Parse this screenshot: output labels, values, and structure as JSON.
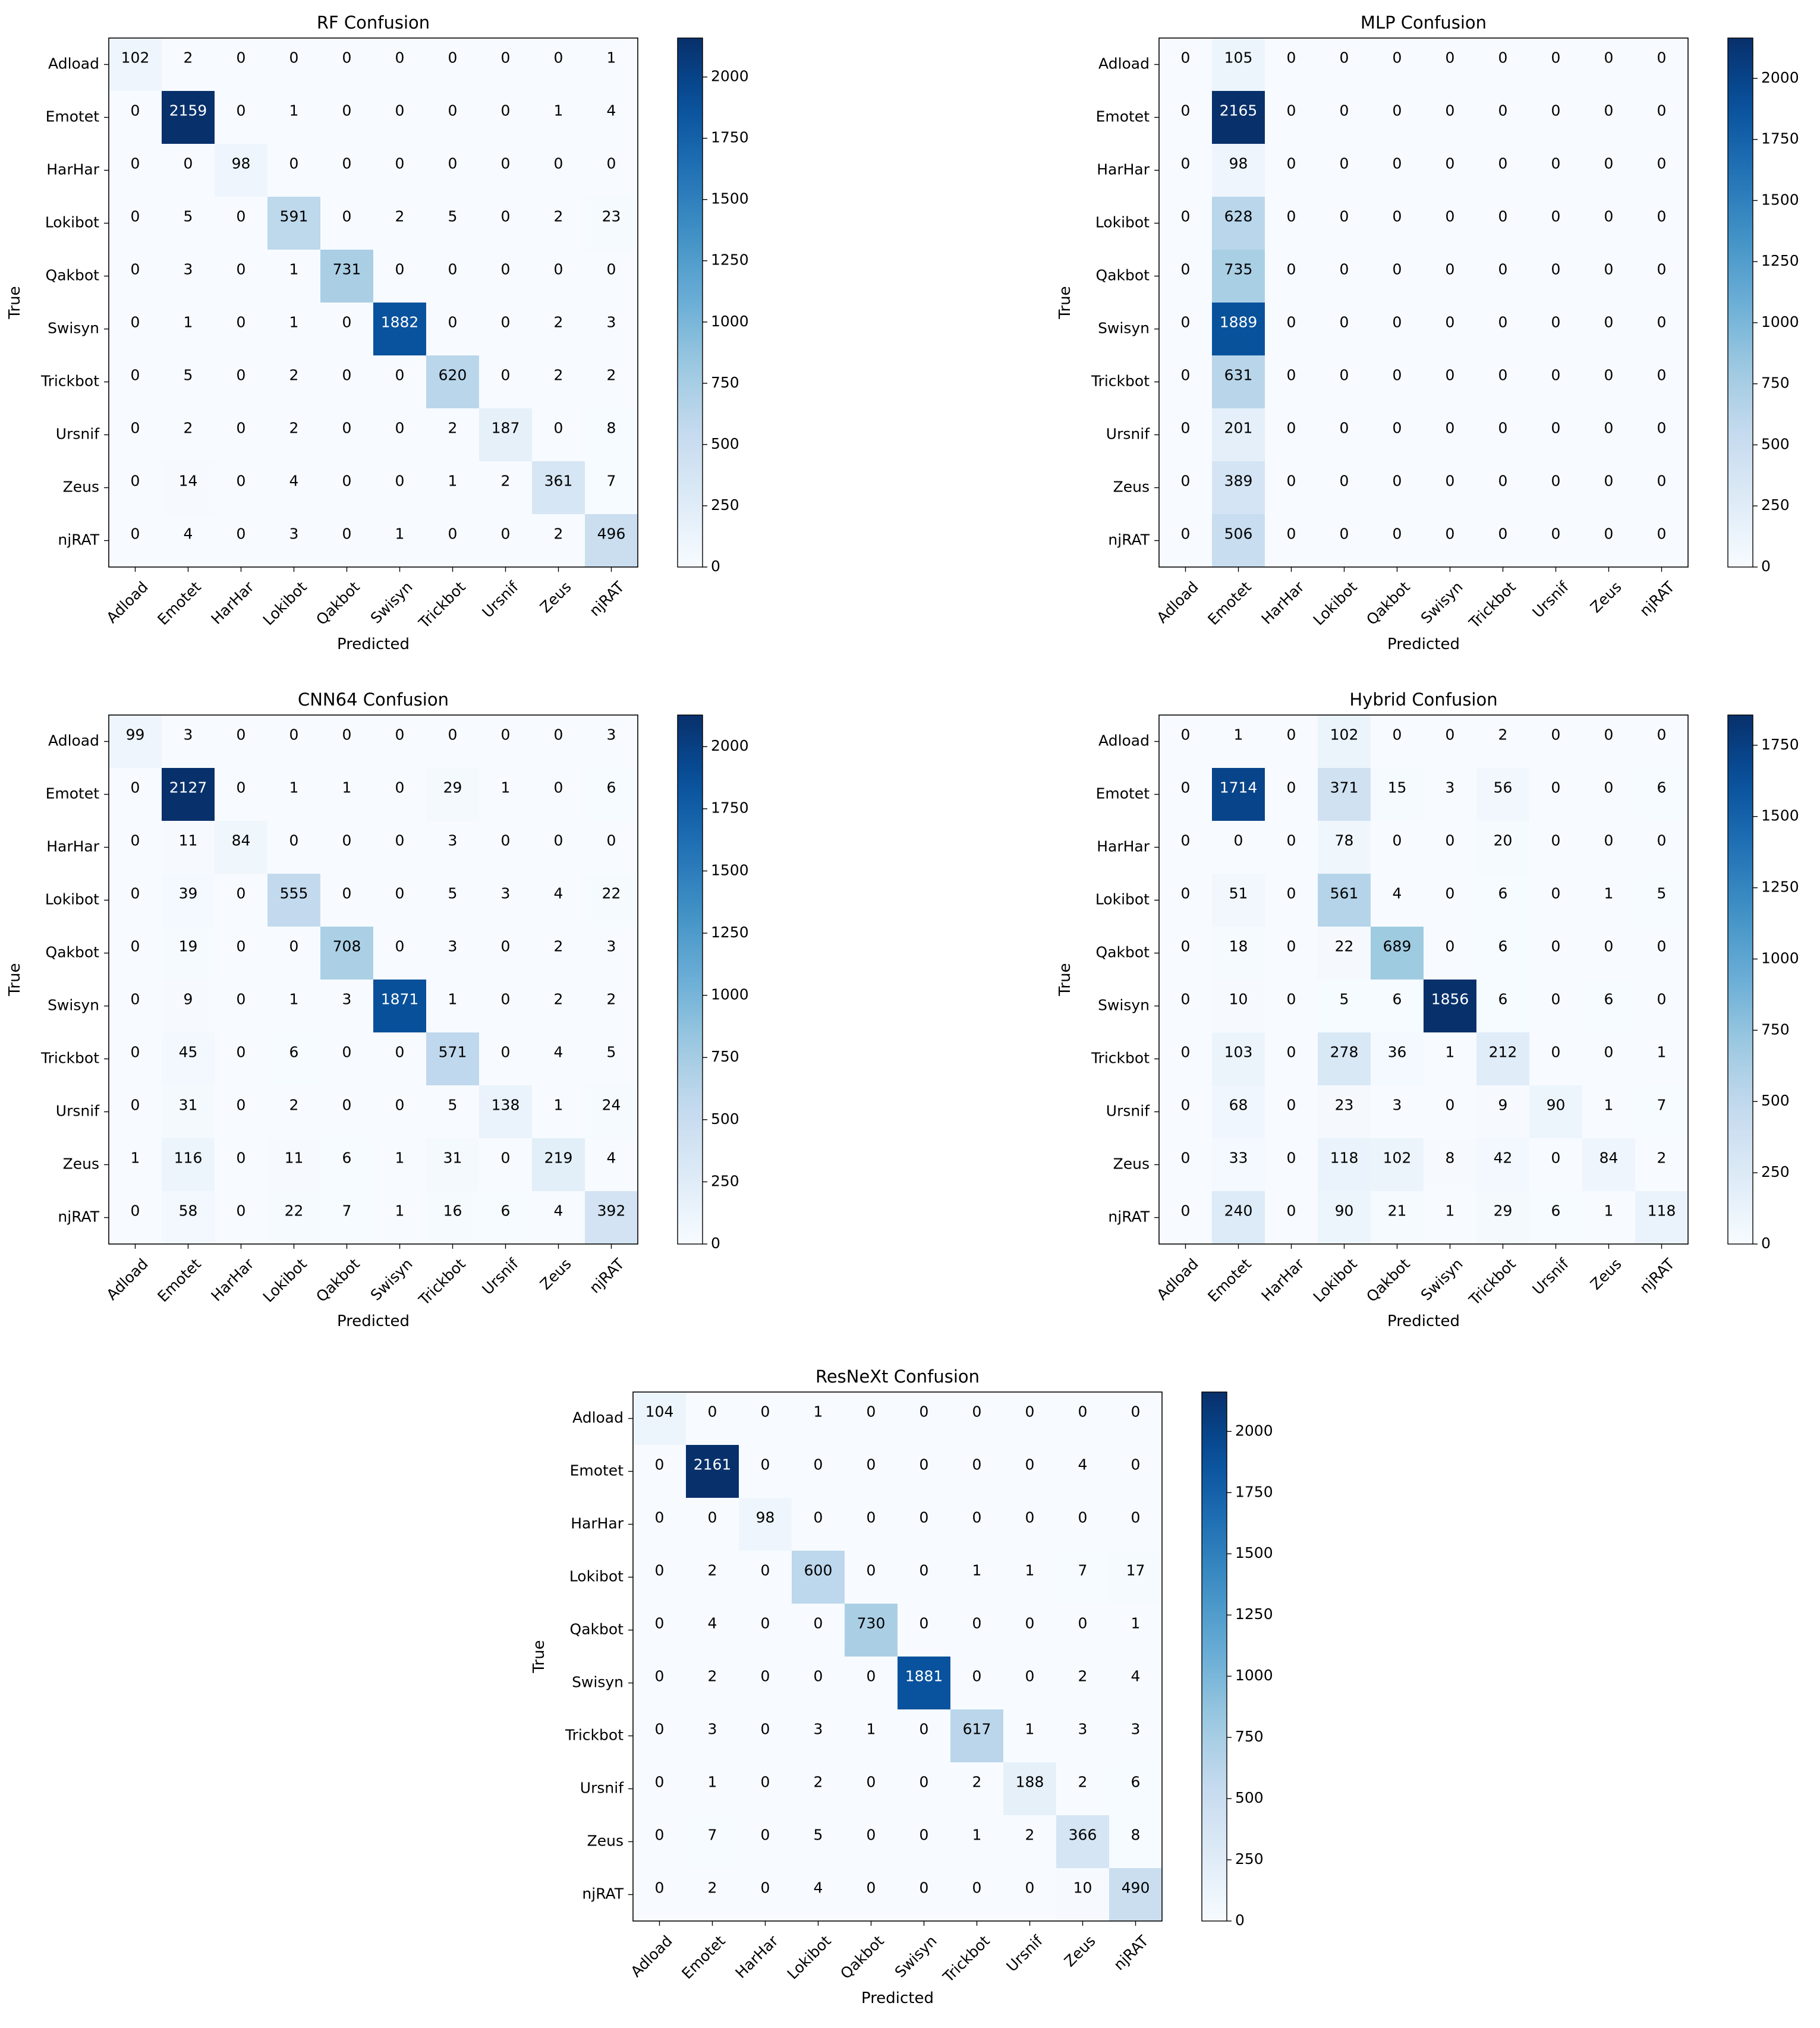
{
  "chart_data": [
    {
      "type": "heatmap",
      "title": "RF Confusion",
      "xlabel": "Predicted",
      "ylabel": "True",
      "labels": [
        "Adload",
        "Emotet",
        "HarHar",
        "Lokibot",
        "Qakbot",
        "Swisyn",
        "Trickbot",
        "Ursnif",
        "Zeus",
        "njRAT"
      ],
      "matrix": [
        [
          102,
          2,
          0,
          0,
          0,
          0,
          0,
          0,
          0,
          1
        ],
        [
          0,
          2159,
          0,
          1,
          0,
          0,
          0,
          0,
          1,
          4
        ],
        [
          0,
          0,
          98,
          0,
          0,
          0,
          0,
          0,
          0,
          0
        ],
        [
          0,
          5,
          0,
          591,
          0,
          2,
          5,
          0,
          2,
          23
        ],
        [
          0,
          3,
          0,
          1,
          731,
          0,
          0,
          0,
          0,
          0
        ],
        [
          0,
          1,
          0,
          1,
          0,
          1882,
          0,
          0,
          2,
          3
        ],
        [
          0,
          5,
          0,
          2,
          0,
          0,
          620,
          0,
          2,
          2
        ],
        [
          0,
          2,
          0,
          2,
          0,
          0,
          2,
          187,
          0,
          8
        ],
        [
          0,
          14,
          0,
          4,
          0,
          0,
          1,
          2,
          361,
          7
        ],
        [
          0,
          4,
          0,
          3,
          0,
          1,
          0,
          0,
          2,
          496
        ]
      ],
      "colorbar_ticks": [
        0,
        250,
        500,
        750,
        1000,
        1250,
        1500,
        1750,
        2000
      ],
      "colormap": "Blues"
    },
    {
      "type": "heatmap",
      "title": "MLP Confusion",
      "xlabel": "Predicted",
      "ylabel": "True",
      "labels": [
        "Adload",
        "Emotet",
        "HarHar",
        "Lokibot",
        "Qakbot",
        "Swisyn",
        "Trickbot",
        "Ursnif",
        "Zeus",
        "njRAT"
      ],
      "matrix": [
        [
          0,
          105,
          0,
          0,
          0,
          0,
          0,
          0,
          0,
          0
        ],
        [
          0,
          2165,
          0,
          0,
          0,
          0,
          0,
          0,
          0,
          0
        ],
        [
          0,
          98,
          0,
          0,
          0,
          0,
          0,
          0,
          0,
          0
        ],
        [
          0,
          628,
          0,
          0,
          0,
          0,
          0,
          0,
          0,
          0
        ],
        [
          0,
          735,
          0,
          0,
          0,
          0,
          0,
          0,
          0,
          0
        ],
        [
          0,
          1889,
          0,
          0,
          0,
          0,
          0,
          0,
          0,
          0
        ],
        [
          0,
          631,
          0,
          0,
          0,
          0,
          0,
          0,
          0,
          0
        ],
        [
          0,
          201,
          0,
          0,
          0,
          0,
          0,
          0,
          0,
          0
        ],
        [
          0,
          389,
          0,
          0,
          0,
          0,
          0,
          0,
          0,
          0
        ],
        [
          0,
          506,
          0,
          0,
          0,
          0,
          0,
          0,
          0,
          0
        ]
      ],
      "colorbar_ticks": [
        0,
        250,
        500,
        750,
        1000,
        1250,
        1500,
        1750,
        2000
      ],
      "colormap": "Blues"
    },
    {
      "type": "heatmap",
      "title": "CNN64 Confusion",
      "xlabel": "Predicted",
      "ylabel": "True",
      "labels": [
        "Adload",
        "Emotet",
        "HarHar",
        "Lokibot",
        "Qakbot",
        "Swisyn",
        "Trickbot",
        "Ursnif",
        "Zeus",
        "njRAT"
      ],
      "matrix": [
        [
          99,
          3,
          0,
          0,
          0,
          0,
          0,
          0,
          0,
          3
        ],
        [
          0,
          2127,
          0,
          1,
          1,
          0,
          29,
          1,
          0,
          6
        ],
        [
          0,
          11,
          84,
          0,
          0,
          0,
          3,
          0,
          0,
          0
        ],
        [
          0,
          39,
          0,
          555,
          0,
          0,
          5,
          3,
          4,
          22
        ],
        [
          0,
          19,
          0,
          0,
          708,
          0,
          3,
          0,
          2,
          3
        ],
        [
          0,
          9,
          0,
          1,
          3,
          1871,
          1,
          0,
          2,
          2
        ],
        [
          0,
          45,
          0,
          6,
          0,
          0,
          571,
          0,
          4,
          5
        ],
        [
          0,
          31,
          0,
          2,
          0,
          0,
          5,
          138,
          1,
          24
        ],
        [
          1,
          116,
          0,
          11,
          6,
          1,
          31,
          0,
          219,
          4
        ],
        [
          0,
          58,
          0,
          22,
          7,
          1,
          16,
          6,
          4,
          392
        ]
      ],
      "colorbar_ticks": [
        0,
        250,
        500,
        750,
        1000,
        1250,
        1500,
        1750,
        2000
      ],
      "colormap": "Blues"
    },
    {
      "type": "heatmap",
      "title": "Hybrid Confusion",
      "xlabel": "Predicted",
      "ylabel": "True",
      "labels": [
        "Adload",
        "Emotet",
        "HarHar",
        "Lokibot",
        "Qakbot",
        "Swisyn",
        "Trickbot",
        "Ursnif",
        "Zeus",
        "njRAT"
      ],
      "matrix": [
        [
          0,
          1,
          0,
          102,
          0,
          0,
          2,
          0,
          0,
          0
        ],
        [
          0,
          1714,
          0,
          371,
          15,
          3,
          56,
          0,
          0,
          6
        ],
        [
          0,
          0,
          0,
          78,
          0,
          0,
          20,
          0,
          0,
          0
        ],
        [
          0,
          51,
          0,
          561,
          4,
          0,
          6,
          0,
          1,
          5
        ],
        [
          0,
          18,
          0,
          22,
          689,
          0,
          6,
          0,
          0,
          0
        ],
        [
          0,
          10,
          0,
          5,
          6,
          1856,
          6,
          0,
          6,
          0
        ],
        [
          0,
          103,
          0,
          278,
          36,
          1,
          212,
          0,
          0,
          1
        ],
        [
          0,
          68,
          0,
          23,
          3,
          0,
          9,
          90,
          1,
          7
        ],
        [
          0,
          33,
          0,
          118,
          102,
          8,
          42,
          0,
          84,
          2
        ],
        [
          0,
          240,
          0,
          90,
          21,
          1,
          29,
          6,
          1,
          118
        ]
      ],
      "colorbar_ticks": [
        0,
        250,
        500,
        750,
        1000,
        1250,
        1500,
        1750
      ],
      "colormap": "Blues"
    },
    {
      "type": "heatmap",
      "title": "ResNeXt Confusion",
      "xlabel": "Predicted",
      "ylabel": "True",
      "labels": [
        "Adload",
        "Emotet",
        "HarHar",
        "Lokibot",
        "Qakbot",
        "Swisyn",
        "Trickbot",
        "Ursnif",
        "Zeus",
        "njRAT"
      ],
      "matrix": [
        [
          104,
          0,
          0,
          1,
          0,
          0,
          0,
          0,
          0,
          0
        ],
        [
          0,
          2161,
          0,
          0,
          0,
          0,
          0,
          0,
          4,
          0
        ],
        [
          0,
          0,
          98,
          0,
          0,
          0,
          0,
          0,
          0,
          0
        ],
        [
          0,
          2,
          0,
          600,
          0,
          0,
          1,
          1,
          7,
          17
        ],
        [
          0,
          4,
          0,
          0,
          730,
          0,
          0,
          0,
          0,
          1
        ],
        [
          0,
          2,
          0,
          0,
          0,
          1881,
          0,
          0,
          2,
          4
        ],
        [
          0,
          3,
          0,
          3,
          1,
          0,
          617,
          1,
          3,
          3
        ],
        [
          0,
          1,
          0,
          2,
          0,
          0,
          2,
          188,
          2,
          6
        ],
        [
          0,
          7,
          0,
          5,
          0,
          0,
          1,
          2,
          366,
          8
        ],
        [
          0,
          2,
          0,
          4,
          0,
          0,
          0,
          0,
          10,
          490
        ]
      ],
      "colorbar_ticks": [
        0,
        250,
        500,
        750,
        1000,
        1250,
        1500,
        1750,
        2000
      ],
      "colormap": "Blues"
    }
  ]
}
